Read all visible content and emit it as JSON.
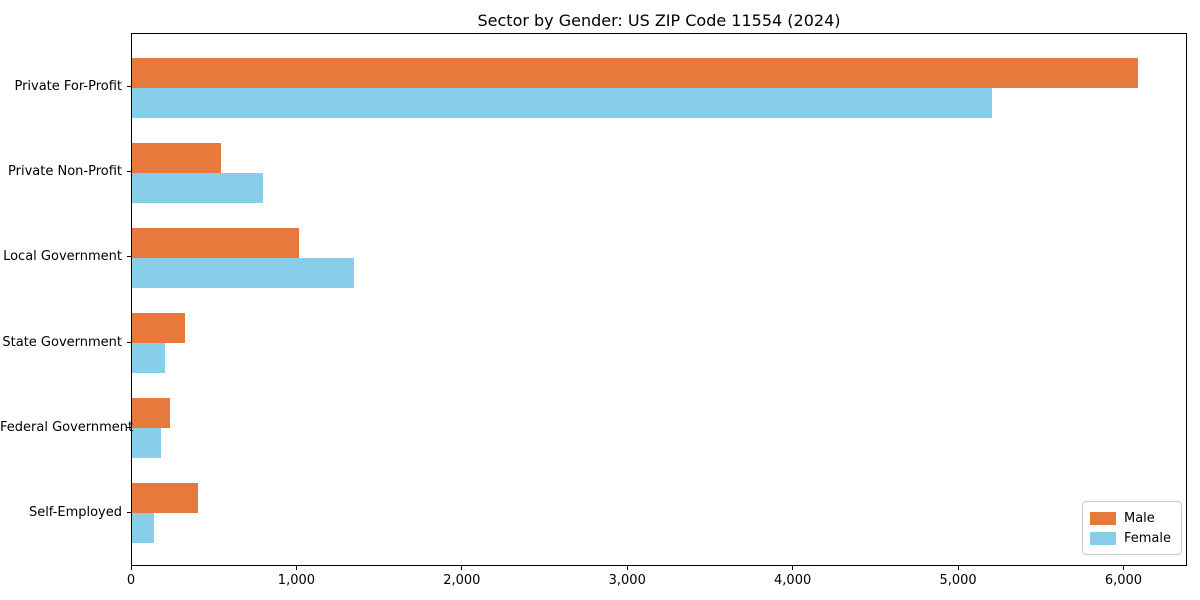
{
  "chart_data": {
    "type": "bar",
    "orientation": "horizontal",
    "title": "Sector by Gender: US ZIP Code 11554 (2024)",
    "xlabel": "",
    "ylabel": "",
    "categories": [
      "Private For-Profit",
      "Private Non-Profit",
      "Local Government",
      "State Government",
      "Federal Government",
      "Self-Employed"
    ],
    "series": [
      {
        "name": "Male",
        "color": "#e8793c",
        "values": [
          6080,
          540,
          1010,
          320,
          230,
          400
        ]
      },
      {
        "name": "Female",
        "color": "#87ceeb",
        "values": [
          5200,
          790,
          1340,
          200,
          175,
          135
        ]
      }
    ],
    "xlim": [
      0,
      6384
    ],
    "x_ticks": [
      0,
      1000,
      2000,
      3000,
      4000,
      5000,
      6000
    ],
    "x_tick_labels": [
      "0",
      "1,000",
      "2,000",
      "3,000",
      "4,000",
      "5,000",
      "6,000"
    ],
    "grid": false,
    "legend_position": "lower right",
    "background_color": "#ffffff",
    "spine_color": "#000000"
  }
}
